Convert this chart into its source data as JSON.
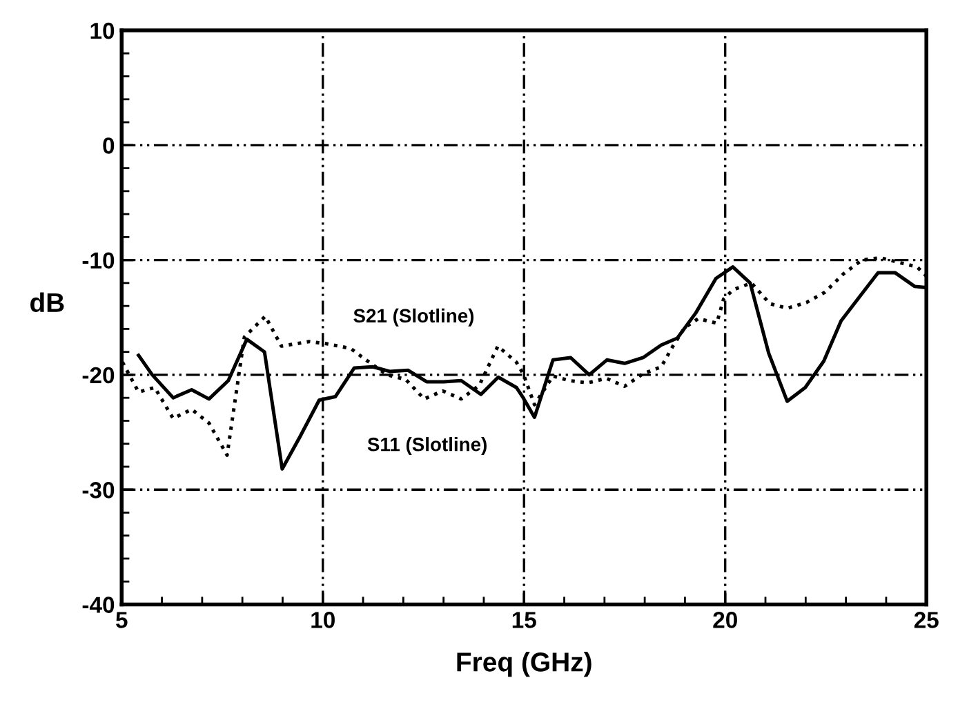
{
  "chart_data": {
    "type": "line",
    "xlabel": "Freq (GHz)",
    "ylabel": "dB",
    "xlim": [
      5,
      25
    ],
    "xticks": [
      5,
      10,
      15,
      20,
      25
    ],
    "ylim": [
      -40,
      10
    ],
    "yticks": [
      -40,
      -30,
      -20,
      -10,
      0,
      10
    ],
    "grid": true,
    "series": [
      {
        "name": "S11 (Slotline)",
        "color": "#000000",
        "line_style": "solid",
        "x": [
          5.42,
          5.76,
          6.28,
          6.74,
          7.17,
          7.65,
          8.11,
          8.55,
          8.99,
          9.43,
          9.91,
          10.31,
          10.78,
          11.24,
          11.66,
          12.12,
          12.58,
          13.0,
          13.44,
          13.93,
          14.36,
          14.81,
          14.98,
          15.26,
          15.72,
          16.16,
          16.62,
          17.06,
          17.5,
          17.96,
          18.41,
          18.81,
          19.27,
          19.77,
          20.19,
          20.62,
          21.08,
          21.54,
          21.99,
          22.45,
          22.88,
          23.34,
          23.8,
          24.22,
          24.71,
          25.0
        ],
        "values": [
          -18.3,
          -20.0,
          -22.0,
          -21.3,
          -22.1,
          -20.5,
          -16.9,
          -18.0,
          -28.2,
          -25.4,
          -22.2,
          -21.9,
          -19.4,
          -19.3,
          -19.7,
          -19.6,
          -20.6,
          -20.6,
          -20.5,
          -21.7,
          -20.2,
          -21.1,
          -22.0,
          -23.7,
          -18.7,
          -18.5,
          -20.0,
          -18.7,
          -19.0,
          -18.5,
          -17.4,
          -16.8,
          -14.6,
          -11.6,
          -10.6,
          -12.0,
          -18.1,
          -22.3,
          -21.1,
          -18.8,
          -15.3,
          -13.2,
          -11.1,
          -11.1,
          -12.3,
          -12.4
        ]
      },
      {
        "name": "S21 (Slotline)",
        "color": "#000000",
        "line_style": "dotted",
        "x": [
          5.02,
          5.42,
          5.82,
          6.28,
          6.74,
          7.17,
          7.62,
          8.05,
          8.57,
          8.97,
          9.66,
          10.11,
          10.69,
          11.15,
          11.6,
          12.06,
          12.52,
          12.98,
          13.44,
          13.89,
          14.35,
          14.81,
          14.98,
          15.26,
          15.72,
          16.12,
          16.58,
          17.04,
          17.5,
          17.96,
          18.41,
          18.7,
          18.99,
          19.33,
          19.79,
          19.96,
          20.19,
          20.65,
          21.11,
          21.54,
          22.02,
          22.48,
          22.94,
          23.4,
          23.86,
          24.31,
          24.77,
          25.0
        ],
        "values": [
          -18.9,
          -21.5,
          -21.1,
          -23.8,
          -23.0,
          -24.2,
          -27.0,
          -16.7,
          -14.9,
          -17.5,
          -17.1,
          -17.3,
          -17.7,
          -18.9,
          -20.0,
          -20.4,
          -22.1,
          -21.4,
          -22.1,
          -20.9,
          -17.5,
          -18.9,
          -19.9,
          -22.6,
          -20.1,
          -20.5,
          -20.7,
          -20.3,
          -21.0,
          -19.9,
          -19.3,
          -17.5,
          -15.9,
          -15.1,
          -15.5,
          -13.4,
          -12.6,
          -12.0,
          -13.8,
          -14.2,
          -13.7,
          -12.8,
          -11.2,
          -10.0,
          -9.8,
          -10.2,
          -10.6,
          -11.4
        ]
      }
    ]
  }
}
